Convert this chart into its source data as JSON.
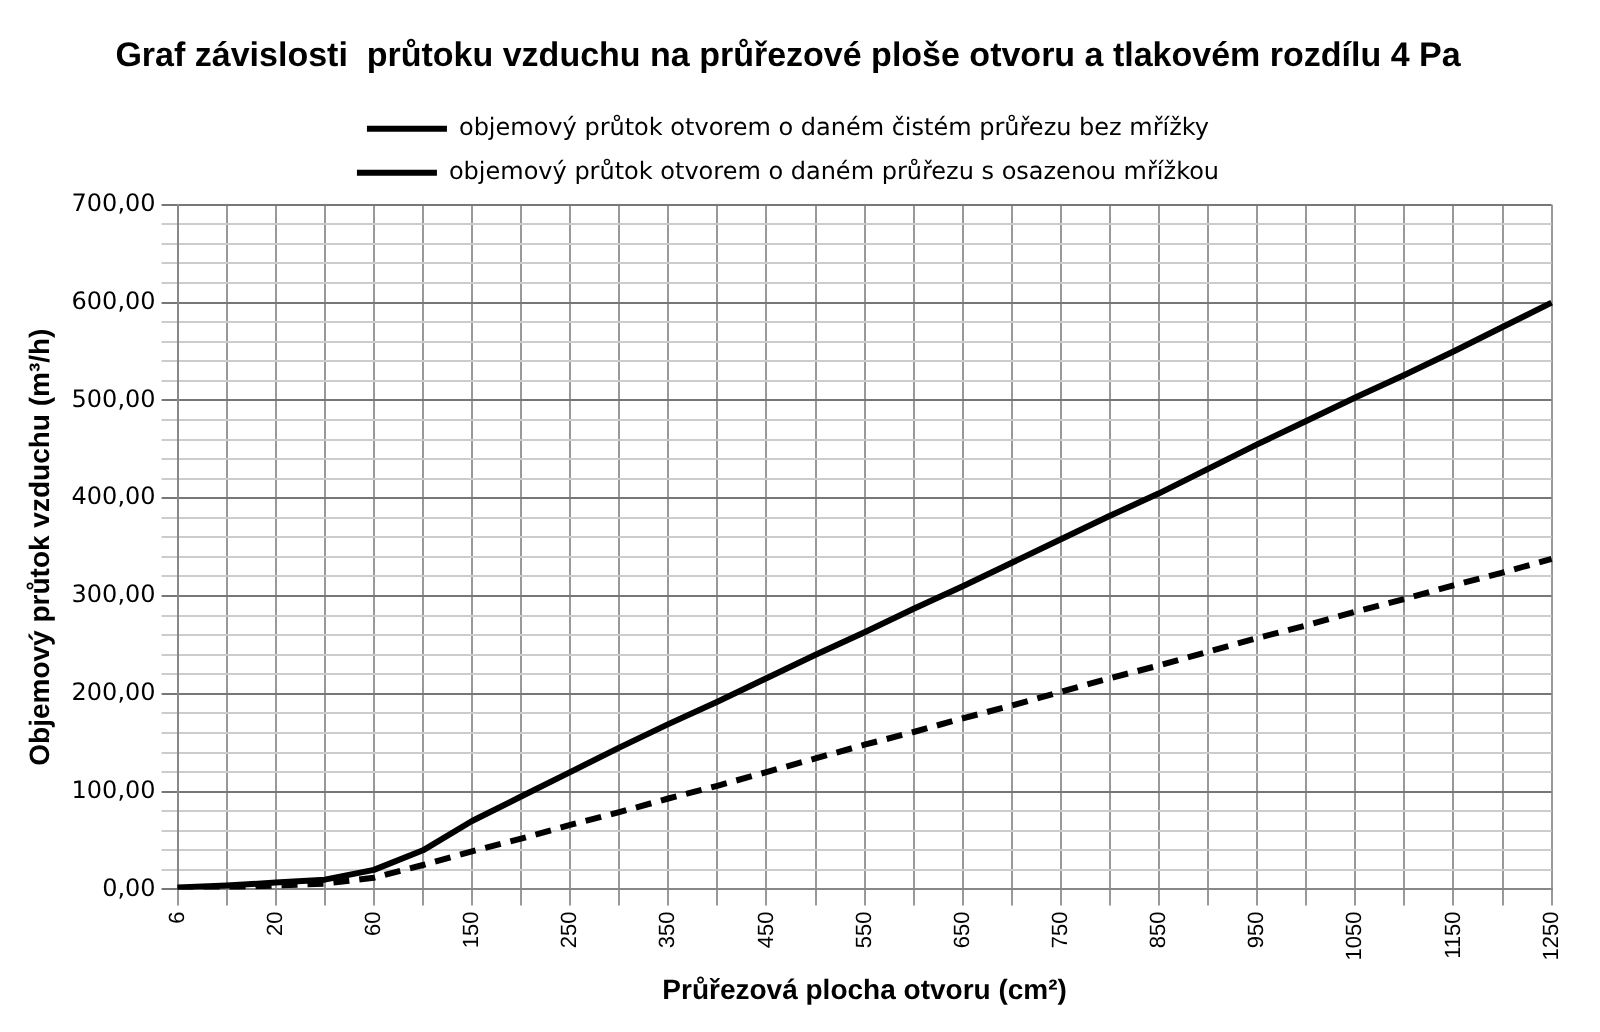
{
  "chart_data": {
    "type": "line",
    "title": "Graf závislosti  průtoku vzduchu na průřezové ploše otvoru a tlakovém rozdílu 4 Pa",
    "xlabel": "Průřezová plocha otvoru (cm²)",
    "ylabel": "Objemový průtok vzduchu (m³/h)",
    "categories": [
      "6",
      null,
      "20",
      null,
      "60",
      null,
      "150",
      null,
      "250",
      null,
      "350",
      null,
      "450",
      null,
      "550",
      null,
      "650",
      null,
      "750",
      null,
      "850",
      null,
      "950",
      null,
      "1050",
      null,
      "1150",
      null,
      "1250"
    ],
    "series": [
      {
        "name": "objemový průtok otvorem o daném čistém průřezu bez mřížky",
        "color": "#000000",
        "line_style": "solid",
        "values": [
          2,
          4,
          7,
          10,
          20,
          40,
          70,
          95,
          120,
          145,
          169,
          192,
          216,
          240,
          263,
          287,
          310,
          334,
          358,
          382,
          405,
          430,
          455,
          479,
          503,
          526,
          550,
          575,
          600
        ]
      },
      {
        "name": "objemový průtok otvorem o daném průřezu s osazenou mřížkou",
        "color": "#000000",
        "line_style": "dashed",
        "values": [
          1,
          2,
          4,
          6,
          12,
          25,
          39,
          52,
          66,
          79,
          93,
          106,
          120,
          134,
          148,
          161,
          175,
          188,
          202,
          216,
          229,
          243,
          257,
          270,
          284,
          297,
          311,
          324,
          338
        ]
      }
    ],
    "ylim": [
      0,
      700
    ],
    "yticks": [
      {
        "value": 0,
        "label": "0,00"
      },
      {
        "value": 20,
        "label": null
      },
      {
        "value": 40,
        "label": null
      },
      {
        "value": 60,
        "label": null
      },
      {
        "value": 80,
        "label": null
      },
      {
        "value": 100,
        "label": "100,00"
      },
      {
        "value": 120,
        "label": null
      },
      {
        "value": 140,
        "label": null
      },
      {
        "value": 160,
        "label": null
      },
      {
        "value": 180,
        "label": null
      },
      {
        "value": 200,
        "label": "200,00"
      },
      {
        "value": 220,
        "label": null
      },
      {
        "value": 240,
        "label": null
      },
      {
        "value": 260,
        "label": null
      },
      {
        "value": 280,
        "label": null
      },
      {
        "value": 300,
        "label": "300,00"
      },
      {
        "value": 320,
        "label": null
      },
      {
        "value": 340,
        "label": null
      },
      {
        "value": 360,
        "label": null
      },
      {
        "value": 380,
        "label": null
      },
      {
        "value": 400,
        "label": "400,00"
      },
      {
        "value": 420,
        "label": null
      },
      {
        "value": 440,
        "label": null
      },
      {
        "value": 460,
        "label": null
      },
      {
        "value": 480,
        "label": null
      },
      {
        "value": 500,
        "label": "500,00"
      },
      {
        "value": 520,
        "label": null
      },
      {
        "value": 540,
        "label": null
      },
      {
        "value": 560,
        "label": null
      },
      {
        "value": 580,
        "label": null
      },
      {
        "value": 600,
        "label": "600,00"
      },
      {
        "value": 620,
        "label": null
      },
      {
        "value": 640,
        "label": null
      },
      {
        "value": 660,
        "label": null
      },
      {
        "value": 680,
        "label": null
      },
      {
        "value": 700,
        "label": "700,00"
      }
    ],
    "grid": true,
    "legend": "top",
    "marker": "none"
  }
}
